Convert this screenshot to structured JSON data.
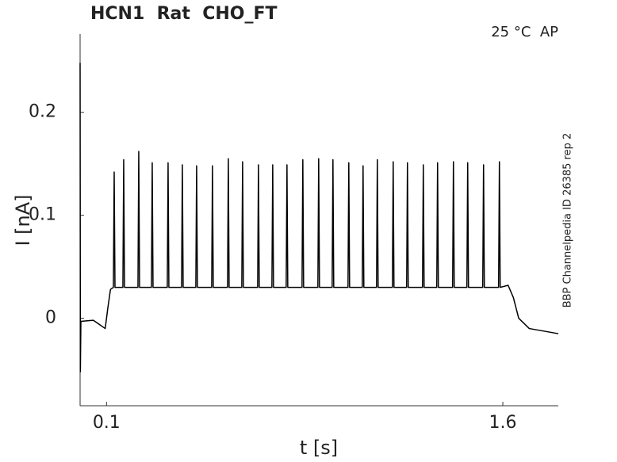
{
  "chart_data": {
    "type": "line",
    "title": "HCN1  Rat  CHO_FT",
    "annotation": "25 °C  AP",
    "side_label": "BBP Channelpedia ID 26385 rep 2",
    "x_label": "t [s]",
    "y_label": "I [nA]",
    "xlim": [
      0,
      1.81
    ],
    "ylim": [
      -0.085,
      0.276
    ],
    "xticks": [
      0.1,
      1.6
    ],
    "yticks": [
      0,
      0.1,
      0.2
    ],
    "series": [
      {
        "name": null,
        "color": "#000000",
        "x": [
          0,
          0.001,
          0.003,
          0.05,
          0.095,
          0.105,
          0.115,
          0.126,
          0.129,
          0.132,
          0.162,
          0.165,
          0.168,
          0.219,
          0.222,
          0.225,
          0.27,
          0.273,
          0.276,
          0.33,
          0.333,
          0.336,
          0.384,
          0.387,
          0.39,
          0.438,
          0.441,
          0.444,
          0.498,
          0.501,
          0.504,
          0.558,
          0.561,
          0.564,
          0.612,
          0.615,
          0.618,
          0.672,
          0.675,
          0.678,
          0.726,
          0.729,
          0.732,
          0.78,
          0.783,
          0.786,
          0.84,
          0.843,
          0.846,
          0.9,
          0.903,
          0.906,
          0.954,
          0.957,
          0.96,
          1.014,
          1.017,
          1.02,
          1.068,
          1.071,
          1.074,
          1.122,
          1.125,
          1.128,
          1.182,
          1.185,
          1.188,
          1.236,
          1.239,
          1.242,
          1.296,
          1.299,
          1.302,
          1.35,
          1.353,
          1.356,
          1.41,
          1.413,
          1.416,
          1.464,
          1.467,
          1.47,
          1.524,
          1.527,
          1.53,
          1.584,
          1.587,
          1.59,
          1.62,
          1.64,
          1.66,
          1.7,
          1.81
        ],
        "values": [
          0.248,
          -0.052,
          -0.003,
          -0.002,
          -0.01,
          0.01,
          0.028,
          0.03,
          0.142,
          0.03,
          0.03,
          0.154,
          0.03,
          0.03,
          0.162,
          0.03,
          0.03,
          0.151,
          0.03,
          0.03,
          0.151,
          0.03,
          0.03,
          0.149,
          0.03,
          0.03,
          0.148,
          0.03,
          0.03,
          0.148,
          0.03,
          0.03,
          0.155,
          0.03,
          0.03,
          0.152,
          0.03,
          0.03,
          0.149,
          0.03,
          0.03,
          0.149,
          0.03,
          0.03,
          0.149,
          0.03,
          0.03,
          0.154,
          0.03,
          0.03,
          0.155,
          0.03,
          0.03,
          0.154,
          0.03,
          0.03,
          0.151,
          0.03,
          0.03,
          0.148,
          0.03,
          0.03,
          0.154,
          0.03,
          0.03,
          0.152,
          0.03,
          0.03,
          0.151,
          0.03,
          0.03,
          0.149,
          0.03,
          0.03,
          0.151,
          0.03,
          0.03,
          0.152,
          0.03,
          0.03,
          0.151,
          0.03,
          0.03,
          0.149,
          0.03,
          0.03,
          0.152,
          0.03,
          0.032,
          0.02,
          0.0,
          -0.01,
          -0.015
        ]
      }
    ]
  }
}
